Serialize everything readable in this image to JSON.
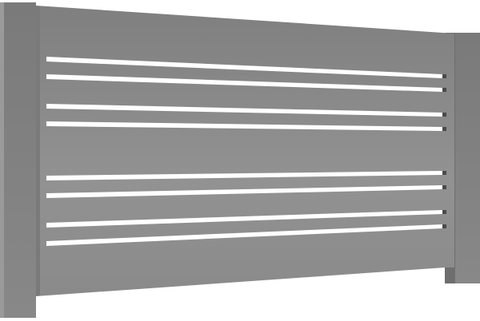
{
  "scene": {
    "subject": "fence-panel",
    "colors": {
      "background": "#ffffff",
      "panel": "#8a8a8a",
      "post": "#7e7e7e",
      "slot": "#ffffff"
    },
    "slot_count": 8
  }
}
